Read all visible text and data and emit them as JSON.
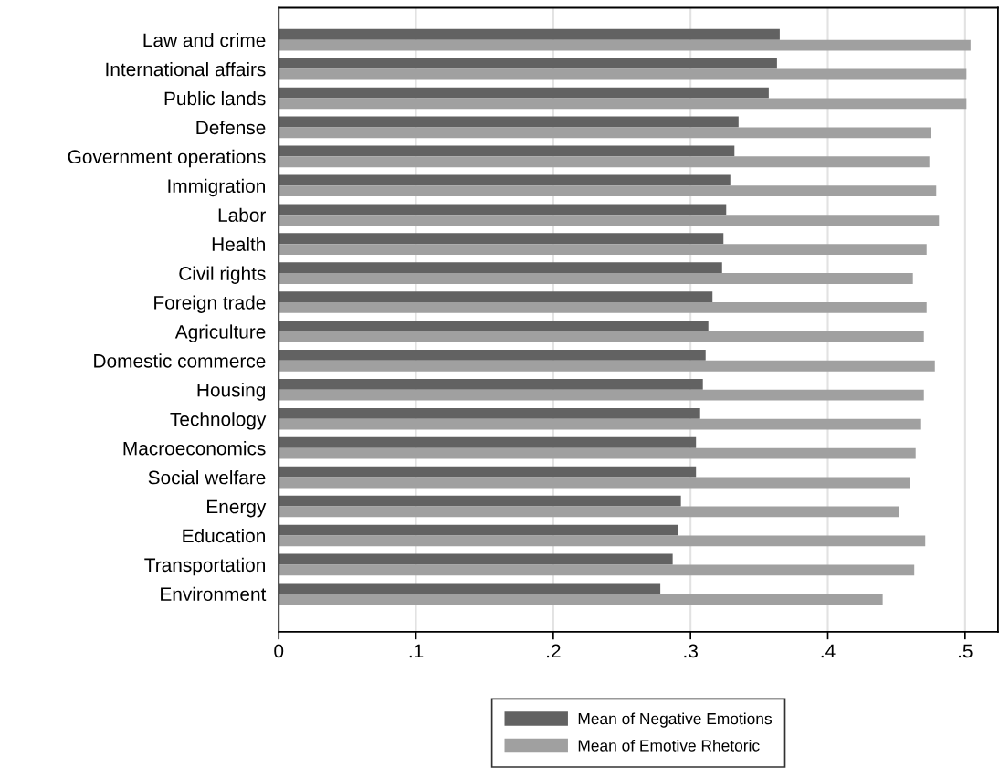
{
  "chart_data": {
    "type": "bar",
    "orientation": "horizontal",
    "categories": [
      "Law and crime",
      "International affairs",
      "Public lands",
      "Defense",
      "Government operations",
      "Immigration",
      "Labor",
      "Health",
      "Civil rights",
      "Foreign trade",
      "Agriculture",
      "Domestic commerce",
      "Housing",
      "Technology",
      "Macroeconomics",
      "Social welfare",
      "Energy",
      "Education",
      "Transportation",
      "Environment"
    ],
    "series": [
      {
        "name": "Mean of Negative Emotions",
        "color": "#626262",
        "values": [
          0.365,
          0.363,
          0.357,
          0.335,
          0.332,
          0.329,
          0.326,
          0.324,
          0.323,
          0.316,
          0.313,
          0.311,
          0.309,
          0.307,
          0.304,
          0.304,
          0.293,
          0.291,
          0.287,
          0.278
        ]
      },
      {
        "name": "Mean of Emotive Rhetoric",
        "color": "#a0a0a0",
        "values": [
          0.504,
          0.501,
          0.501,
          0.475,
          0.474,
          0.479,
          0.481,
          0.472,
          0.462,
          0.472,
          0.47,
          0.478,
          0.47,
          0.468,
          0.464,
          0.46,
          0.452,
          0.471,
          0.463,
          0.44
        ]
      }
    ],
    "xlim": [
      0,
      0.524
    ],
    "xticks": [
      {
        "value": 0,
        "label": "0"
      },
      {
        "value": 0.1,
        "label": ".1"
      },
      {
        "value": 0.2,
        "label": ".2"
      },
      {
        "value": 0.3,
        "label": ".3"
      },
      {
        "value": 0.4,
        "label": ".4"
      },
      {
        "value": 0.5,
        "label": ".5"
      }
    ],
    "grid": "x",
    "legend": "bottom"
  }
}
